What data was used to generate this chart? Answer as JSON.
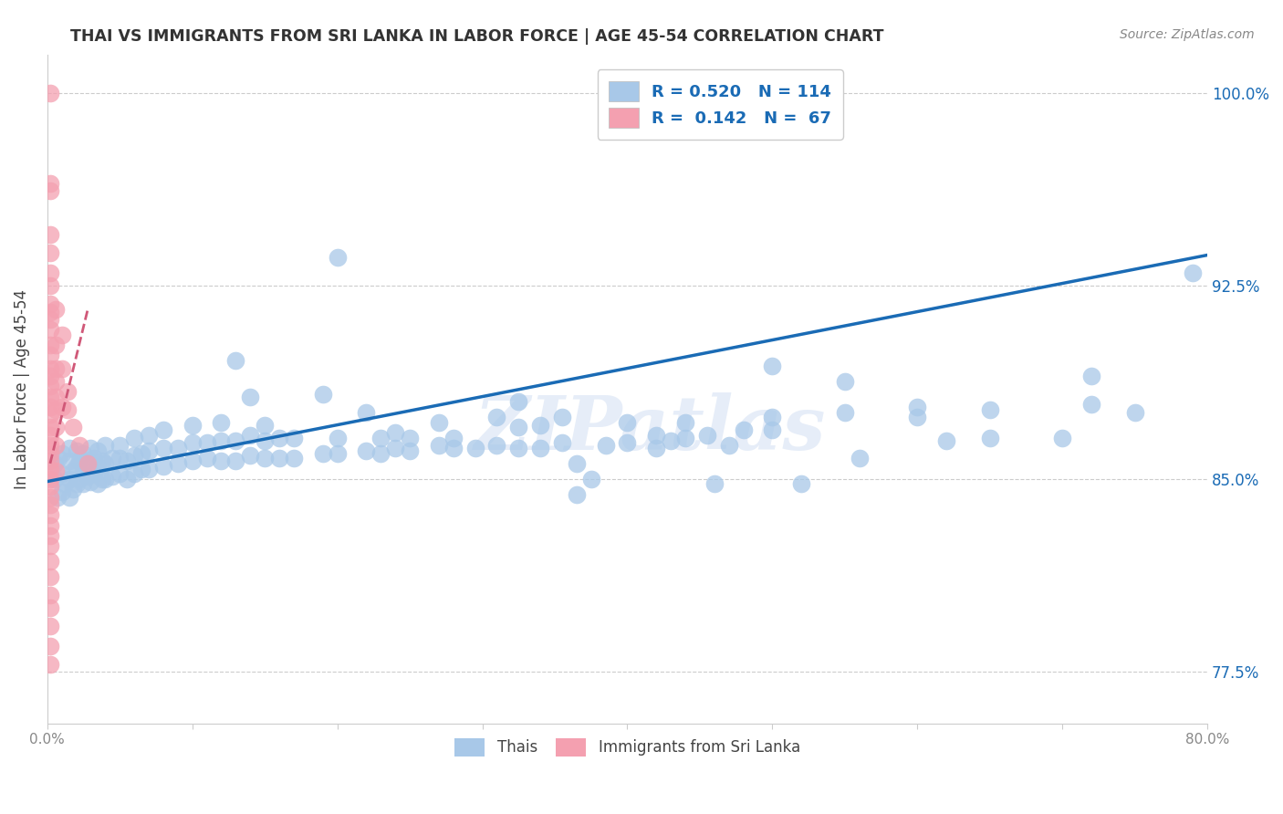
{
  "title": "THAI VS IMMIGRANTS FROM SRI LANKA IN LABOR FORCE | AGE 45-54 CORRELATION CHART",
  "source": "Source: ZipAtlas.com",
  "ylabel": "In Labor Force | Age 45-54",
  "watermark": "ZIPatlas",
  "xmin": 0.0,
  "xmax": 0.8,
  "ymin": 0.755,
  "ymax": 1.015,
  "right_ytick_vals": [
    0.775,
    0.85,
    0.925,
    1.0
  ],
  "right_ytick_labels": [
    "77.5%",
    "85.0%",
    "92.5%",
    "100.0%"
  ],
  "grid_ytick_vals": [
    0.775,
    0.85,
    0.925,
    1.0
  ],
  "xticks": [
    0.0,
    0.1,
    0.2,
    0.3,
    0.4,
    0.5,
    0.6,
    0.7,
    0.8
  ],
  "xtick_labels": [
    "0.0%",
    "",
    "",
    "",
    "",
    "",
    "",
    "",
    "80.0%"
  ],
  "blue_color": "#a8c8e8",
  "pink_color": "#f4a0b0",
  "blue_line_color": "#1a6bb5",
  "pink_line_color": "#d05878",
  "pink_line_dashed": true,
  "R_blue": 0.52,
  "N_blue": 114,
  "R_pink": 0.142,
  "N_pink": 67,
  "blue_scatter": [
    [
      0.005,
      0.85
    ],
    [
      0.005,
      0.856
    ],
    [
      0.007,
      0.843
    ],
    [
      0.008,
      0.858
    ],
    [
      0.01,
      0.845
    ],
    [
      0.01,
      0.852
    ],
    [
      0.01,
      0.86
    ],
    [
      0.012,
      0.848
    ],
    [
      0.015,
      0.843
    ],
    [
      0.015,
      0.85
    ],
    [
      0.015,
      0.857
    ],
    [
      0.015,
      0.862
    ],
    [
      0.018,
      0.846
    ],
    [
      0.018,
      0.853
    ],
    [
      0.02,
      0.848
    ],
    [
      0.02,
      0.855
    ],
    [
      0.02,
      0.861
    ],
    [
      0.022,
      0.85
    ],
    [
      0.022,
      0.857
    ],
    [
      0.025,
      0.848
    ],
    [
      0.025,
      0.853
    ],
    [
      0.025,
      0.86
    ],
    [
      0.028,
      0.851
    ],
    [
      0.028,
      0.857
    ],
    [
      0.03,
      0.849
    ],
    [
      0.03,
      0.855
    ],
    [
      0.03,
      0.862
    ],
    [
      0.032,
      0.852
    ],
    [
      0.032,
      0.858
    ],
    [
      0.035,
      0.848
    ],
    [
      0.035,
      0.855
    ],
    [
      0.035,
      0.861
    ],
    [
      0.038,
      0.85
    ],
    [
      0.038,
      0.857
    ],
    [
      0.04,
      0.85
    ],
    [
      0.04,
      0.856
    ],
    [
      0.04,
      0.863
    ],
    [
      0.045,
      0.851
    ],
    [
      0.045,
      0.858
    ],
    [
      0.05,
      0.852
    ],
    [
      0.05,
      0.858
    ],
    [
      0.05,
      0.863
    ],
    [
      0.055,
      0.85
    ],
    [
      0.055,
      0.857
    ],
    [
      0.06,
      0.852
    ],
    [
      0.06,
      0.859
    ],
    [
      0.06,
      0.866
    ],
    [
      0.065,
      0.854
    ],
    [
      0.065,
      0.86
    ],
    [
      0.07,
      0.854
    ],
    [
      0.07,
      0.861
    ],
    [
      0.07,
      0.867
    ],
    [
      0.08,
      0.855
    ],
    [
      0.08,
      0.862
    ],
    [
      0.08,
      0.869
    ],
    [
      0.09,
      0.856
    ],
    [
      0.09,
      0.862
    ],
    [
      0.1,
      0.857
    ],
    [
      0.1,
      0.864
    ],
    [
      0.1,
      0.871
    ],
    [
      0.11,
      0.858
    ],
    [
      0.11,
      0.864
    ],
    [
      0.12,
      0.857
    ],
    [
      0.12,
      0.865
    ],
    [
      0.12,
      0.872
    ],
    [
      0.13,
      0.857
    ],
    [
      0.13,
      0.865
    ],
    [
      0.13,
      0.896
    ],
    [
      0.14,
      0.859
    ],
    [
      0.14,
      0.867
    ],
    [
      0.14,
      0.882
    ],
    [
      0.15,
      0.858
    ],
    [
      0.15,
      0.865
    ],
    [
      0.15,
      0.871
    ],
    [
      0.16,
      0.858
    ],
    [
      0.16,
      0.866
    ],
    [
      0.17,
      0.858
    ],
    [
      0.17,
      0.866
    ],
    [
      0.19,
      0.86
    ],
    [
      0.19,
      0.883
    ],
    [
      0.2,
      0.86
    ],
    [
      0.2,
      0.866
    ],
    [
      0.2,
      0.936
    ],
    [
      0.22,
      0.861
    ],
    [
      0.22,
      0.876
    ],
    [
      0.23,
      0.86
    ],
    [
      0.23,
      0.866
    ],
    [
      0.24,
      0.862
    ],
    [
      0.24,
      0.868
    ],
    [
      0.25,
      0.861
    ],
    [
      0.25,
      0.866
    ],
    [
      0.27,
      0.863
    ],
    [
      0.27,
      0.872
    ],
    [
      0.28,
      0.862
    ],
    [
      0.28,
      0.866
    ],
    [
      0.295,
      0.862
    ],
    [
      0.31,
      0.863
    ],
    [
      0.31,
      0.874
    ],
    [
      0.325,
      0.862
    ],
    [
      0.325,
      0.87
    ],
    [
      0.325,
      0.88
    ],
    [
      0.34,
      0.862
    ],
    [
      0.34,
      0.871
    ],
    [
      0.355,
      0.864
    ],
    [
      0.355,
      0.874
    ],
    [
      0.365,
      0.844
    ],
    [
      0.365,
      0.856
    ],
    [
      0.375,
      0.85
    ],
    [
      0.385,
      0.863
    ],
    [
      0.4,
      0.864
    ],
    [
      0.4,
      0.872
    ],
    [
      0.42,
      0.862
    ],
    [
      0.42,
      0.867
    ],
    [
      0.43,
      0.865
    ],
    [
      0.44,
      0.866
    ],
    [
      0.44,
      0.872
    ],
    [
      0.455,
      0.867
    ],
    [
      0.46,
      0.848
    ],
    [
      0.47,
      0.863
    ],
    [
      0.48,
      0.869
    ],
    [
      0.5,
      0.869
    ],
    [
      0.5,
      0.874
    ],
    [
      0.5,
      0.894
    ],
    [
      0.52,
      0.848
    ],
    [
      0.55,
      0.876
    ],
    [
      0.55,
      0.888
    ],
    [
      0.56,
      0.858
    ],
    [
      0.6,
      0.874
    ],
    [
      0.6,
      0.878
    ],
    [
      0.62,
      0.865
    ],
    [
      0.65,
      0.866
    ],
    [
      0.65,
      0.877
    ],
    [
      0.7,
      0.866
    ],
    [
      0.72,
      0.879
    ],
    [
      0.72,
      0.89
    ],
    [
      0.75,
      0.876
    ],
    [
      0.79,
      0.93
    ]
  ],
  "pink_scatter": [
    [
      0.002,
      1.0
    ],
    [
      0.002,
      0.965
    ],
    [
      0.002,
      0.962
    ],
    [
      0.002,
      0.945
    ],
    [
      0.002,
      0.938
    ],
    [
      0.002,
      0.93
    ],
    [
      0.002,
      0.925
    ],
    [
      0.002,
      0.918
    ],
    [
      0.002,
      0.915
    ],
    [
      0.002,
      0.912
    ],
    [
      0.002,
      0.908
    ],
    [
      0.002,
      0.902
    ],
    [
      0.002,
      0.898
    ],
    [
      0.002,
      0.893
    ],
    [
      0.002,
      0.89
    ],
    [
      0.002,
      0.886
    ],
    [
      0.002,
      0.882
    ],
    [
      0.002,
      0.878
    ],
    [
      0.002,
      0.875
    ],
    [
      0.002,
      0.87
    ],
    [
      0.002,
      0.867
    ],
    [
      0.002,
      0.863
    ],
    [
      0.002,
      0.86
    ],
    [
      0.002,
      0.857
    ],
    [
      0.002,
      0.854
    ],
    [
      0.002,
      0.85
    ],
    [
      0.002,
      0.847
    ],
    [
      0.002,
      0.843
    ],
    [
      0.002,
      0.84
    ],
    [
      0.002,
      0.836
    ],
    [
      0.002,
      0.832
    ],
    [
      0.002,
      0.828
    ],
    [
      0.002,
      0.824
    ],
    [
      0.002,
      0.818
    ],
    [
      0.002,
      0.812
    ],
    [
      0.002,
      0.805
    ],
    [
      0.002,
      0.8
    ],
    [
      0.002,
      0.793
    ],
    [
      0.002,
      0.785
    ],
    [
      0.002,
      0.778
    ],
    [
      0.006,
      0.916
    ],
    [
      0.006,
      0.902
    ],
    [
      0.006,
      0.893
    ],
    [
      0.006,
      0.888
    ],
    [
      0.006,
      0.882
    ],
    [
      0.006,
      0.877
    ],
    [
      0.006,
      0.87
    ],
    [
      0.006,
      0.863
    ],
    [
      0.006,
      0.853
    ],
    [
      0.01,
      0.906
    ],
    [
      0.01,
      0.893
    ],
    [
      0.01,
      0.878
    ],
    [
      0.014,
      0.884
    ],
    [
      0.014,
      0.877
    ],
    [
      0.018,
      0.87
    ],
    [
      0.022,
      0.863
    ],
    [
      0.028,
      0.856
    ]
  ],
  "blue_trend_x": [
    0.0,
    0.8
  ],
  "blue_trend_y": [
    0.849,
    0.937
  ],
  "pink_trend_x": [
    0.002,
    0.028
  ],
  "pink_trend_y": [
    0.856,
    0.916
  ]
}
